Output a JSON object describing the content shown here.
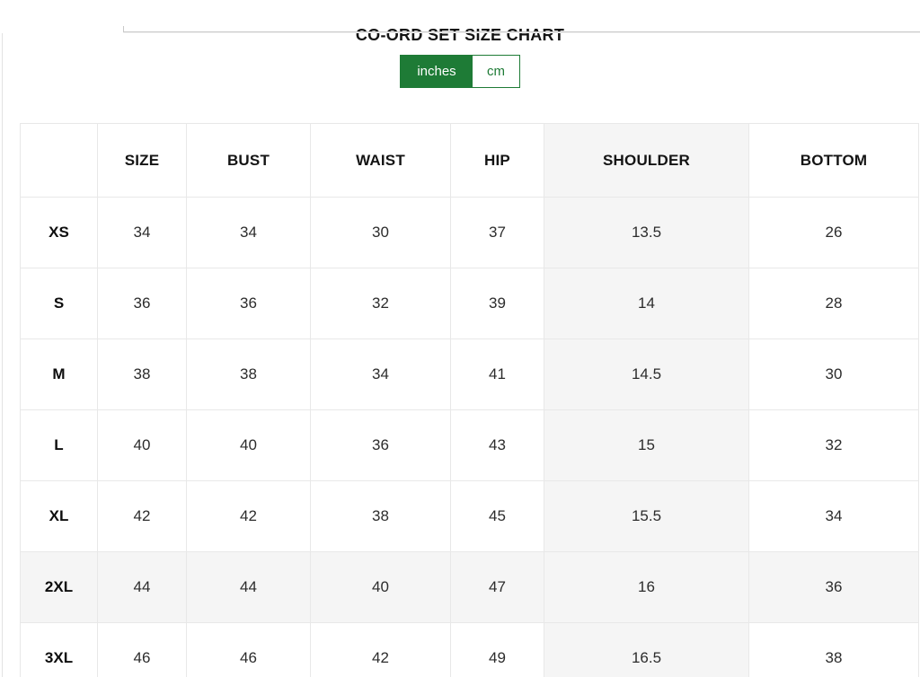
{
  "page": {
    "title": "CO-ORD SET SIZE CHART"
  },
  "unit_toggle": {
    "options": [
      {
        "label": "inches",
        "active": true
      },
      {
        "label": "cm",
        "active": false
      }
    ]
  },
  "colors": {
    "accent_green": "#1e7b36",
    "highlight_fill": "#f5f5f5",
    "grid_border": "#e8e8e8"
  },
  "table": {
    "headers": [
      "",
      "SIZE",
      "BUST",
      "WAIST",
      "HIP",
      "SHOULDER",
      "BOTTOM"
    ],
    "highlighted_column": "SHOULDER",
    "unit": "inches",
    "rows": [
      {
        "label": "XS",
        "cells": [
          "34",
          "34",
          "30",
          "37",
          "13.5",
          "26"
        ],
        "highlight": false
      },
      {
        "label": "S",
        "cells": [
          "36",
          "36",
          "32",
          "39",
          "14",
          "28"
        ],
        "highlight": false
      },
      {
        "label": "M",
        "cells": [
          "38",
          "38",
          "34",
          "41",
          "14.5",
          "30"
        ],
        "highlight": false
      },
      {
        "label": "L",
        "cells": [
          "40",
          "40",
          "36",
          "43",
          "15",
          "32"
        ],
        "highlight": false
      },
      {
        "label": "XL",
        "cells": [
          "42",
          "42",
          "38",
          "45",
          "15.5",
          "34"
        ],
        "highlight": false
      },
      {
        "label": "2XL",
        "cells": [
          "44",
          "44",
          "40",
          "47",
          "16",
          "36"
        ],
        "highlight": true
      },
      {
        "label": "3XL",
        "cells": [
          "46",
          "46",
          "42",
          "49",
          "16.5",
          "38"
        ],
        "highlight": false
      }
    ]
  }
}
